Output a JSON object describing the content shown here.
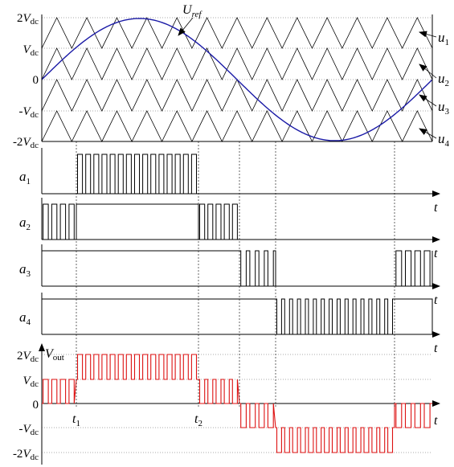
{
  "panel1": {
    "y_ticks": [
      {
        "coef": "2",
        "sub": "dc"
      },
      {
        "coef": "",
        "sub": "dc"
      },
      {
        "coef": "0",
        "sub": ""
      },
      {
        "coef": "-",
        "sub": "dc"
      },
      {
        "coef": "-2",
        "sub": "dc"
      }
    ],
    "v_symbol": "V",
    "uref": {
      "main": "U",
      "sub": "ref"
    },
    "carriers": [
      {
        "main": "u",
        "sub": "1"
      },
      {
        "main": "u",
        "sub": "2"
      },
      {
        "main": "u",
        "sub": "3"
      },
      {
        "main": "u",
        "sub": "4"
      }
    ],
    "carrier_color": "#000000",
    "reference_color": "#1a1aa6"
  },
  "gates": [
    {
      "main": "a",
      "sub": "1"
    },
    {
      "main": "a",
      "sub": "2"
    },
    {
      "main": "a",
      "sub": "3"
    },
    {
      "main": "a",
      "sub": "4"
    }
  ],
  "time_label": "t",
  "output": {
    "y_ticks": [
      {
        "coef": "2",
        "sub": "dc"
      },
      {
        "coef": "",
        "sub": "dc"
      },
      {
        "coef": "0",
        "sub": ""
      },
      {
        "coef": "-",
        "sub": "dc"
      },
      {
        "coef": "-2",
        "sub": "dc"
      }
    ],
    "label": {
      "main": "V",
      "sub": "out"
    },
    "t_marks": [
      {
        "main": "t",
        "sub": "1"
      },
      {
        "main": "t",
        "sub": "2"
      }
    ],
    "color": "#dd1111"
  }
}
